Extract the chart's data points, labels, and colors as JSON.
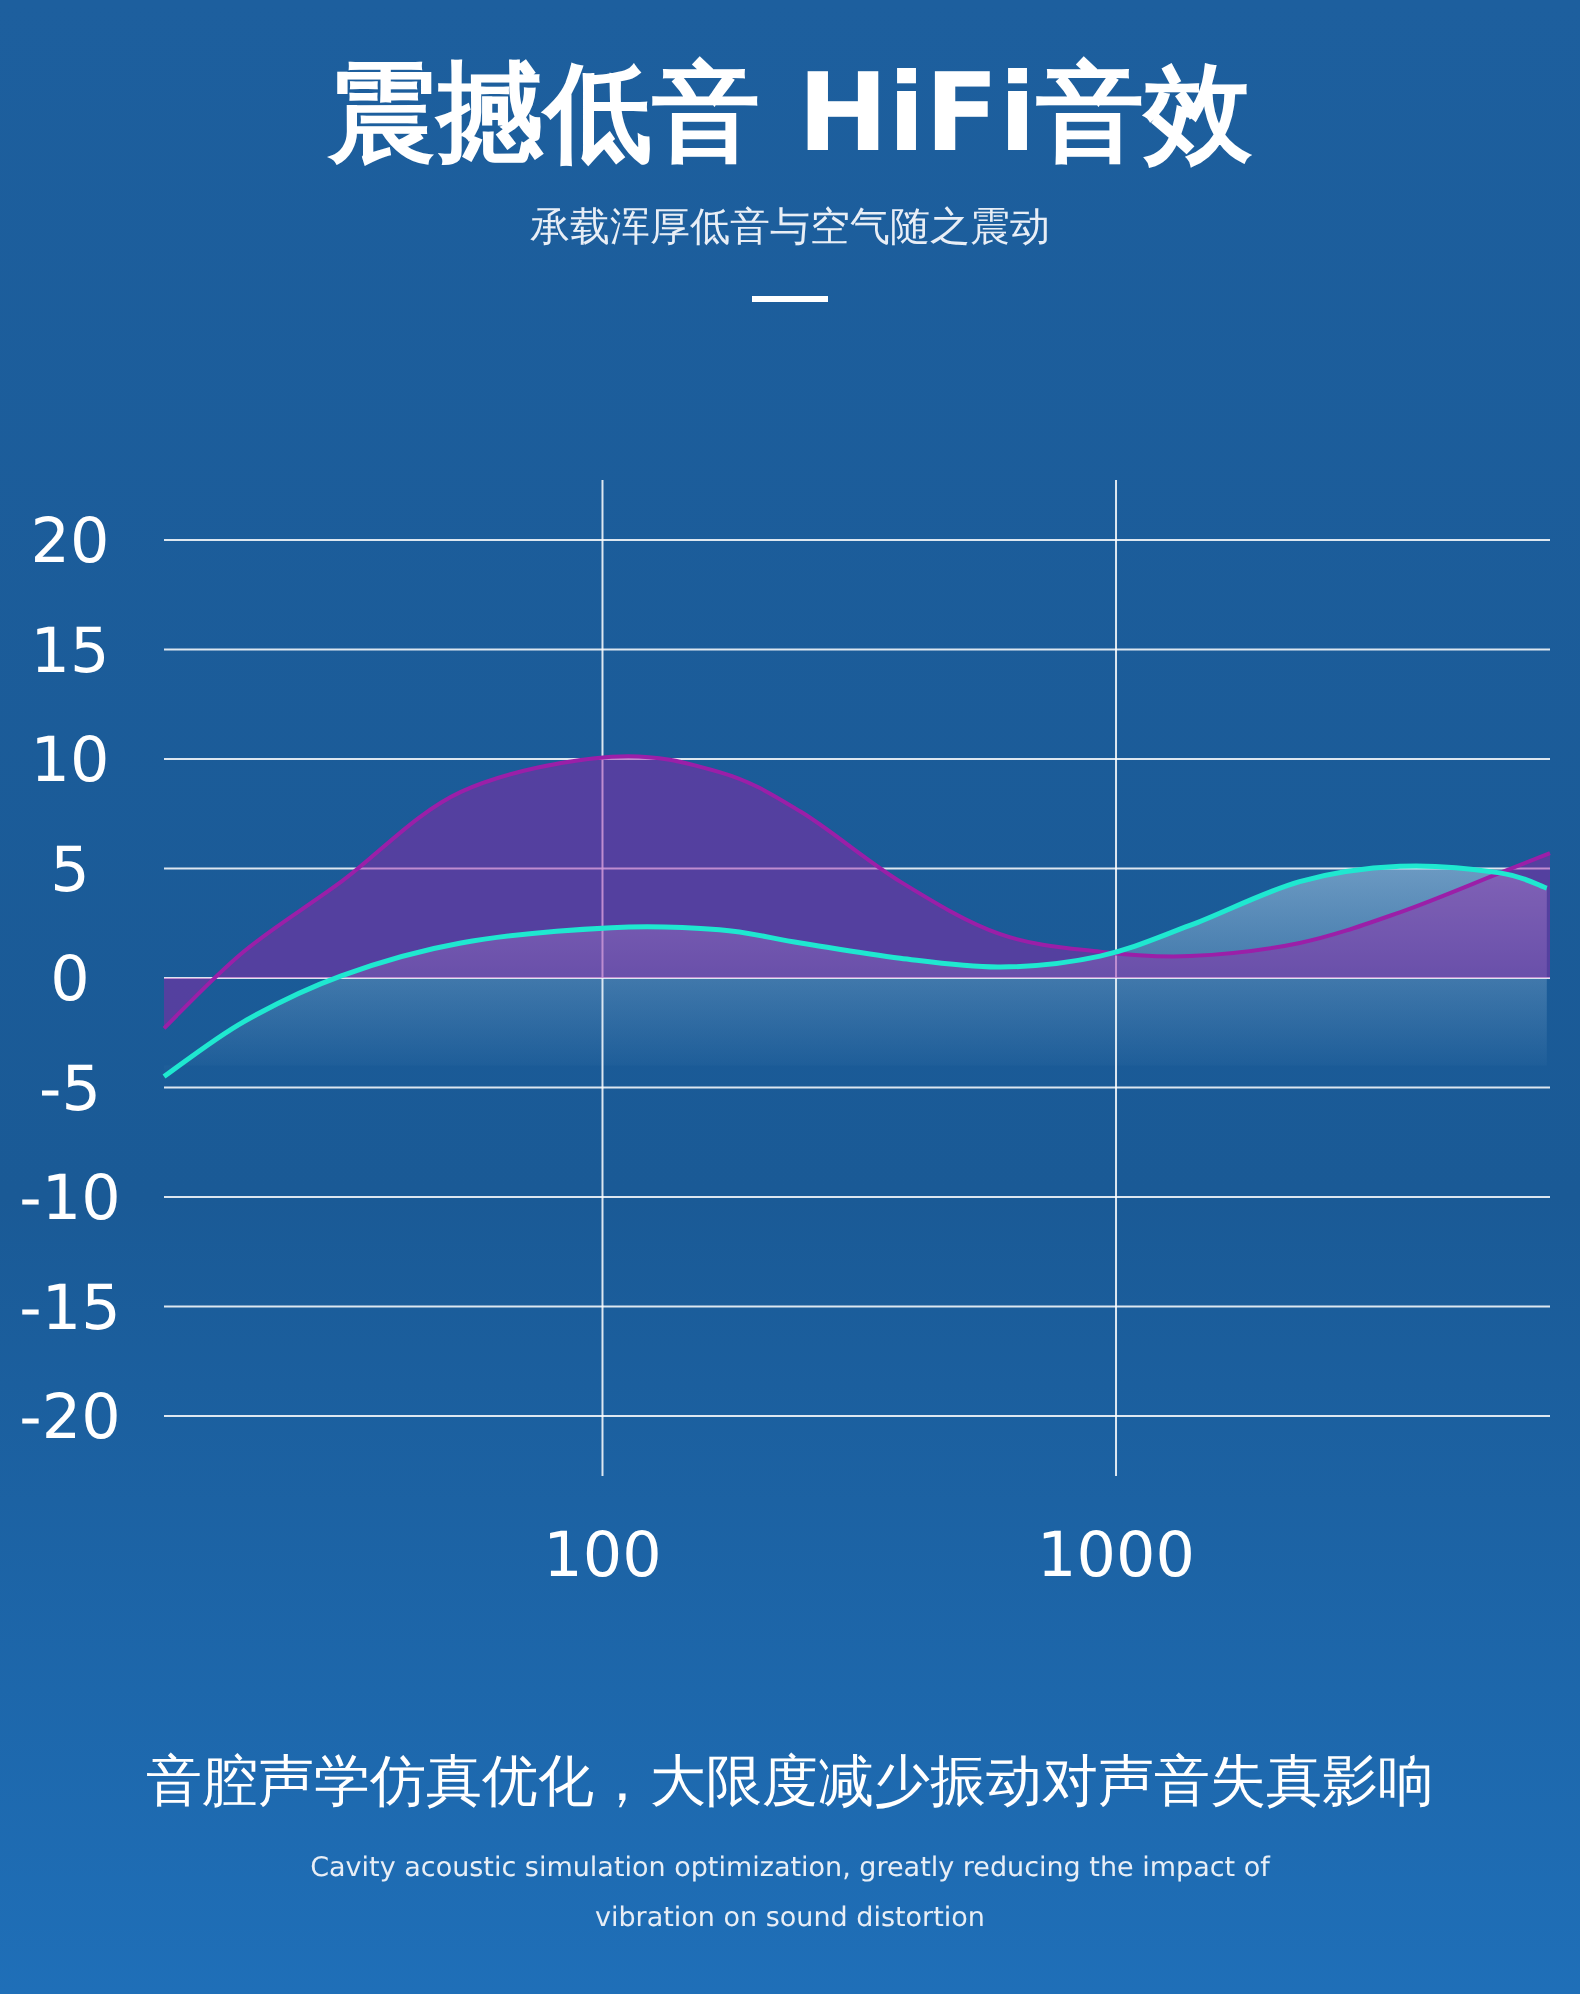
{
  "chart_data": {
    "type": "area",
    "title": "震撼低音 HiFi音效",
    "subtitle": "承载浑厚低音与空气随之震动",
    "annotations": [
      "音腔声学仿真优化，大限度减少振动对声音失真影响",
      "Cavity acoustic simulation optimization, greatly reducing the impact of vibration on sound distortion"
    ],
    "log": "x",
    "xlim": [
      14,
      7000
    ],
    "xticks": [
      100,
      1000
    ],
    "ylim": [
      -20,
      20
    ],
    "yticks": [
      20,
      15,
      10,
      5,
      0,
      -5,
      -10,
      -15,
      -20
    ],
    "grid": true,
    "series": [
      {
        "color": "#9b1fa8",
        "x": [
          14,
          20,
          31,
          53,
          104,
          169,
          243,
          380,
          595,
          931,
          1393,
          2278,
          3570,
          5594,
          7000
        ],
        "values": [
          -2.3,
          1.2,
          4.4,
          8.5,
          10.1,
          9.4,
          7.6,
          4.4,
          2.0,
          1.2,
          1.0,
          1.6,
          3.0,
          4.8,
          5.7
        ]
      },
      {
        "type": "line",
        "color": "#1fe8d0",
        "x": [
          14,
          20,
          31,
          53,
          104,
          169,
          243,
          380,
          595,
          931,
          1393,
          2278,
          3570,
          5594,
          6900
        ],
        "values": [
          -4.5,
          -2.0,
          0.1,
          1.6,
          2.3,
          2.2,
          1.6,
          0.9,
          0.5,
          1.0,
          2.4,
          4.4,
          5.1,
          4.8,
          4.1
        ]
      }
    ]
  }
}
